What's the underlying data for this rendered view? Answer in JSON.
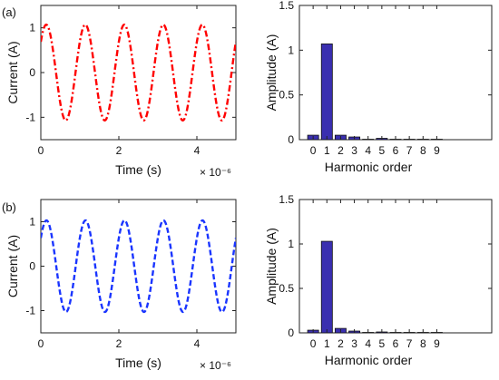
{
  "panel_labels": [
    "(a)",
    "(b)"
  ],
  "chart_data": [
    {
      "type": "line",
      "panel": "(a)",
      "xlabel": "Time (s)",
      "ylabel": "Current (A)",
      "x_multiplier": "× 10⁻⁶",
      "xlim": [
        0,
        5
      ],
      "ylim": [
        -1.5,
        1.5
      ],
      "xticks": [
        "0",
        "2",
        "4"
      ],
      "yticks": [
        "-1",
        "0",
        "1"
      ],
      "color": "#ff0000",
      "line_style": "dash-dot",
      "series": [
        {
          "amplitude": 1.07,
          "frequency_MHz": 1.0,
          "phase_deg": 40
        }
      ],
      "grid": false
    },
    {
      "type": "bar",
      "panel": "(a)",
      "xlabel": "Harmonic order",
      "ylabel": "Amplitude (A)",
      "ylim": [
        0,
        1.5
      ],
      "yticks": [
        "0",
        "0.5",
        "1",
        "1.5"
      ],
      "categories": [
        "0",
        "1",
        "2",
        "3",
        "4",
        "5",
        "6",
        "7",
        "8",
        "9"
      ],
      "values": [
        0.05,
        1.07,
        0.05,
        0.03,
        0.005,
        0.015,
        0.005,
        0.005,
        0.005,
        0.005
      ],
      "color": "#3a2fb0",
      "grid": false
    },
    {
      "type": "line",
      "panel": "(b)",
      "xlabel": "Time (s)",
      "ylabel": "Current (A)",
      "x_multiplier": "× 10⁻⁶",
      "xlim": [
        0,
        5
      ],
      "ylim": [
        -1.5,
        1.5
      ],
      "xticks": [
        "0",
        "2",
        "4"
      ],
      "yticks": [
        "-1",
        "0",
        "1"
      ],
      "color": "#1a35ff",
      "line_style": "dashed",
      "series": [
        {
          "amplitude": 1.03,
          "frequency_MHz": 1.0,
          "phase_deg": 38
        }
      ],
      "grid": false
    },
    {
      "type": "bar",
      "panel": "(b)",
      "xlabel": "Harmonic order",
      "ylabel": "Amplitude (A)",
      "ylim": [
        0,
        1.5
      ],
      "yticks": [
        "0",
        "0.5",
        "1",
        "1.5"
      ],
      "categories": [
        "0",
        "1",
        "2",
        "3",
        "4",
        "5",
        "6",
        "7",
        "8",
        "9"
      ],
      "values": [
        0.03,
        1.03,
        0.05,
        0.02,
        0.005,
        0.01,
        0.005,
        0.005,
        0.005,
        0.005
      ],
      "color": "#3a2fb0",
      "grid": false
    }
  ]
}
